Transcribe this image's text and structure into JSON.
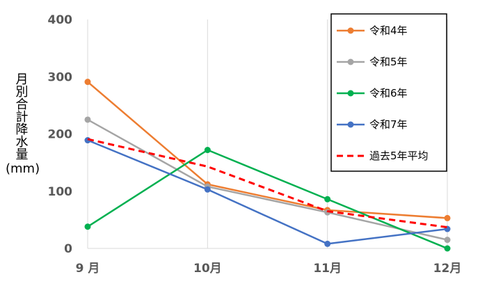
{
  "chart_data": {
    "type": "line",
    "categories": [
      "9 月",
      "10月",
      "11月",
      "12月"
    ],
    "ylim": [
      0,
      400
    ],
    "yticks": [
      0,
      100,
      200,
      300,
      400
    ],
    "ylabel": "月別合計降水量",
    "ylabel_unit": "(mm)",
    "grid": "vertical",
    "legend_position": "top-right",
    "series": [
      {
        "name": "令和4年",
        "values": [
          291,
          112,
          67,
          53
        ],
        "color": "#ED7D31",
        "style": "solid"
      },
      {
        "name": "令和5年",
        "values": [
          225,
          108,
          63,
          15
        ],
        "color": "#A5A5A5",
        "style": "solid"
      },
      {
        "name": "令和6年",
        "values": [
          38,
          172,
          86,
          0
        ],
        "color": "#00B050",
        "style": "solid"
      },
      {
        "name": "令和7年",
        "values": [
          189,
          103,
          8,
          34
        ],
        "color": "#4472C4",
        "style": "solid"
      },
      {
        "name": "過去5年平均",
        "values": [
          191,
          143,
          65,
          37
        ],
        "color": "#FF0000",
        "style": "dashed"
      }
    ]
  }
}
